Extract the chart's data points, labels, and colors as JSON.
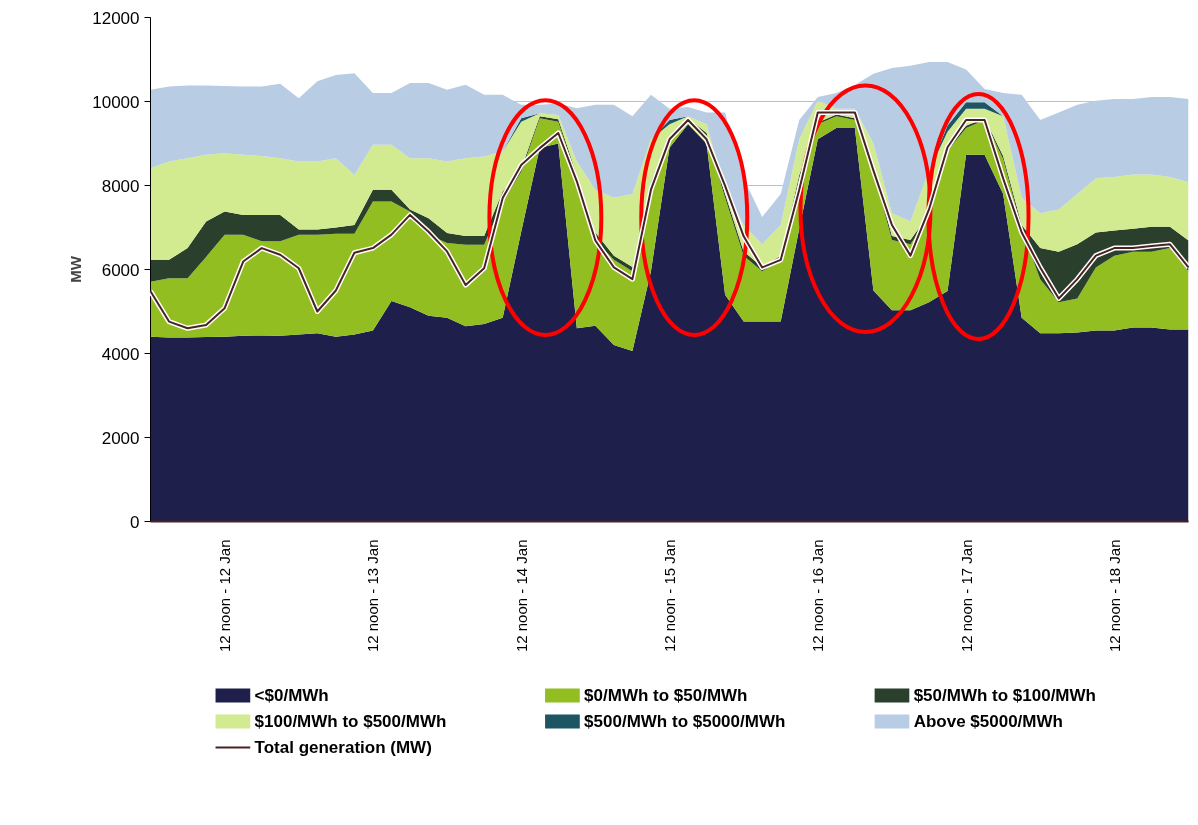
{
  "chart_data": {
    "type": "area",
    "stacked": true,
    "ylabel": "MW",
    "ylim": [
      0,
      12000
    ],
    "yticks": [
      0,
      2000,
      4000,
      6000,
      8000,
      10000,
      12000
    ],
    "categories": [
      null,
      null,
      null,
      null,
      "12 noon - 12 Jan",
      null,
      null,
      null,
      null,
      null,
      null,
      null,
      "12 noon - 13 Jan",
      null,
      null,
      null,
      null,
      null,
      null,
      null,
      "12 noon - 14 Jan",
      null,
      null,
      null,
      null,
      null,
      null,
      null,
      "12 noon - 15 Jan",
      null,
      null,
      null,
      null,
      null,
      null,
      null,
      "12 noon - 16 Jan",
      null,
      null,
      null,
      null,
      null,
      null,
      null,
      "12 noon - 17 Jan",
      null,
      null,
      null,
      null,
      null,
      null,
      null,
      "12 noon - 18 Jan",
      null,
      null,
      null,
      null
    ],
    "grid": "y",
    "legend": "bottom",
    "series": [
      {
        "name": "<$0/MWh",
        "color": "#1f1f4b",
        "values": [
          4400,
          4380,
          4380,
          4390,
          4400,
          4420,
          4430,
          4420,
          4450,
          4480,
          4400,
          4450,
          4550,
          5250,
          5100,
          4900,
          4850,
          4650,
          4700,
          4850,
          6900,
          8900,
          9000,
          4600,
          4660,
          4200,
          4060,
          5960,
          8900,
          9460,
          9000,
          5400,
          4760,
          4760,
          4760,
          6970,
          9100,
          9370,
          9370,
          5500,
          5030,
          5030,
          5220,
          5490,
          8730,
          8730,
          7800,
          4850,
          4480,
          4480,
          4500,
          4550,
          4550,
          4620,
          4620,
          4570,
          4570
        ]
      },
      {
        "name": "$0/MWh to $50/MWh",
        "color": "#92be22",
        "values": [
          1310,
          1410,
          1410,
          1910,
          2430,
          2410,
          2240,
          2250,
          2380,
          2350,
          2450,
          2400,
          3070,
          2370,
          2280,
          1930,
          1780,
          1940,
          1890,
          2750,
          1430,
          700,
          520,
          3570,
          2030,
          2030,
          1900,
          2030,
          200,
          100,
          190,
          2310,
          1570,
          1200,
          1470,
          1200,
          360,
          280,
          190,
          2860,
          1670,
          1570,
          2030,
          3330,
          640,
          830,
          830,
          2120,
          1290,
          740,
          810,
          1500,
          1780,
          1800,
          1800,
          1940,
          1390
        ]
      },
      {
        "name": "$50/MWh to $100/MWh",
        "color": "#2b3f2d",
        "values": [
          520,
          440,
          720,
          840,
          550,
          470,
          630,
          630,
          120,
          120,
          150,
          210,
          280,
          280,
          50,
          390,
          240,
          210,
          210,
          260,
          70,
          50,
          60,
          80,
          190,
          100,
          100,
          100,
          50,
          40,
          60,
          90,
          100,
          100,
          100,
          80,
          40,
          40,
          40,
          60,
          100,
          100,
          80,
          60,
          50,
          40,
          70,
          90,
          740,
          1200,
          1290,
          830,
          600,
          550,
          600,
          510,
          730
        ]
      },
      {
        "name": "$100/MWh to $500/MWh",
        "color": "#d2ea90",
        "values": [
          2180,
          2340,
          2140,
          1590,
          1390,
          1430,
          1400,
          1350,
          1620,
          1620,
          1650,
          1190,
          1070,
          1070,
          1220,
          1430,
          1700,
          1850,
          1890,
          950,
          1120,
          70,
          100,
          320,
          1020,
          1380,
          1740,
          1010,
          310,
          50,
          210,
          100,
          630,
          540,
          730,
          850,
          520,
          140,
          230,
          580,
          540,
          450,
          1030,
          400,
          410,
          230,
          950,
          650,
          830,
          1010,
          1200,
          1290,
          1270,
          1290,
          1240,
          1180,
          1390
        ]
      },
      {
        "name": "$500/MWh to $5000/MWh",
        "color": "#1d5562",
        "values": [
          0,
          0,
          0,
          0,
          0,
          0,
          0,
          0,
          0,
          0,
          0,
          0,
          0,
          0,
          0,
          0,
          0,
          0,
          0,
          0,
          80,
          0,
          0,
          0,
          0,
          0,
          0,
          0,
          100,
          0,
          0,
          0,
          0,
          0,
          0,
          0,
          0,
          0,
          0,
          0,
          0,
          0,
          0,
          150,
          150,
          150,
          0,
          0,
          0,
          0,
          0,
          0,
          0,
          0,
          0,
          0,
          0
        ]
      },
      {
        "name": "Above $5000/MWh",
        "color": "#b8cce4",
        "values": [
          1870,
          1790,
          1730,
          1650,
          1600,
          1630,
          1660,
          1770,
          1510,
          1910,
          1980,
          2420,
          1230,
          1230,
          1790,
          1790,
          1710,
          1750,
          1470,
          1350,
          320,
          200,
          270,
          1270,
          2020,
          2210,
          1850,
          1060,
          270,
          220,
          280,
          1840,
          1110,
          650,
          740,
          460,
          90,
          370,
          560,
          1660,
          3460,
          3700,
          2580,
          1510,
          780,
          320,
          550,
          2450,
          2220,
          2310,
          2120,
          1850,
          1860,
          1800,
          1850,
          1910,
          1980
        ]
      },
      {
        "name": "Total generation (MW)",
        "type": "line",
        "color": "#4a2222",
        "values": [
          5480,
          4760,
          4600,
          4680,
          5080,
          6190,
          6510,
          6350,
          6030,
          5000,
          5500,
          6400,
          6510,
          6830,
          7300,
          6900,
          6430,
          5630,
          6030,
          7700,
          8490,
          8890,
          9250,
          8100,
          6690,
          6050,
          5770,
          7900,
          9100,
          9560,
          9100,
          7990,
          6790,
          6050,
          6230,
          7900,
          9740,
          9740,
          9740,
          8360,
          7060,
          6330,
          7430,
          8910,
          9560,
          9560,
          8170,
          6880,
          6050,
          5310,
          5770,
          6330,
          6510,
          6510,
          6560,
          6600,
          6050
        ]
      }
    ]
  }
}
